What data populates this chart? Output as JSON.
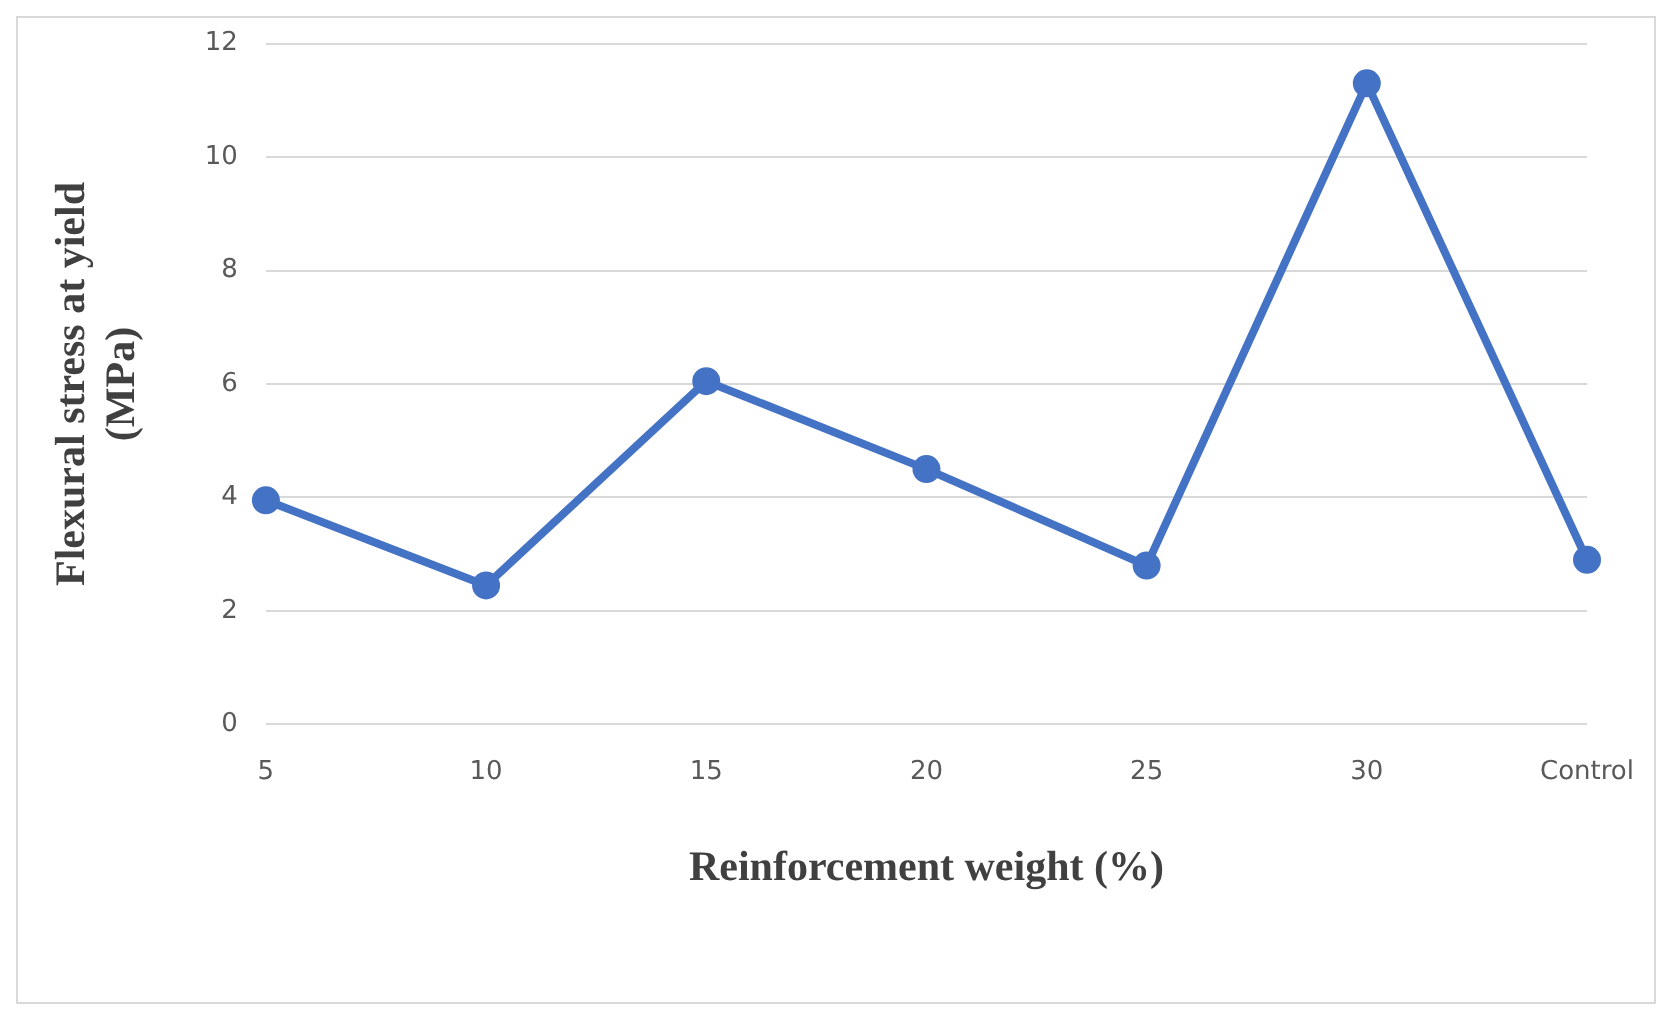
{
  "chart_data": {
    "type": "line",
    "xlabel": "Reinforcement weight (%)",
    "ylabel": "Flexural stress at yield (MPa)",
    "categories": [
      "5",
      "10",
      "15",
      "20",
      "25",
      "30",
      "Control"
    ],
    "series": [
      {
        "color": "#4472c4",
        "values": [
          3.95,
          2.45,
          6.05,
          4.5,
          2.8,
          11.3,
          2.9
        ]
      }
    ],
    "ylim": [
      0,
      12
    ],
    "yticks": [
      0,
      2,
      4,
      6,
      8,
      10,
      12
    ],
    "grid": "y",
    "legend": false,
    "marker": "circle",
    "line_style": "solid"
  }
}
